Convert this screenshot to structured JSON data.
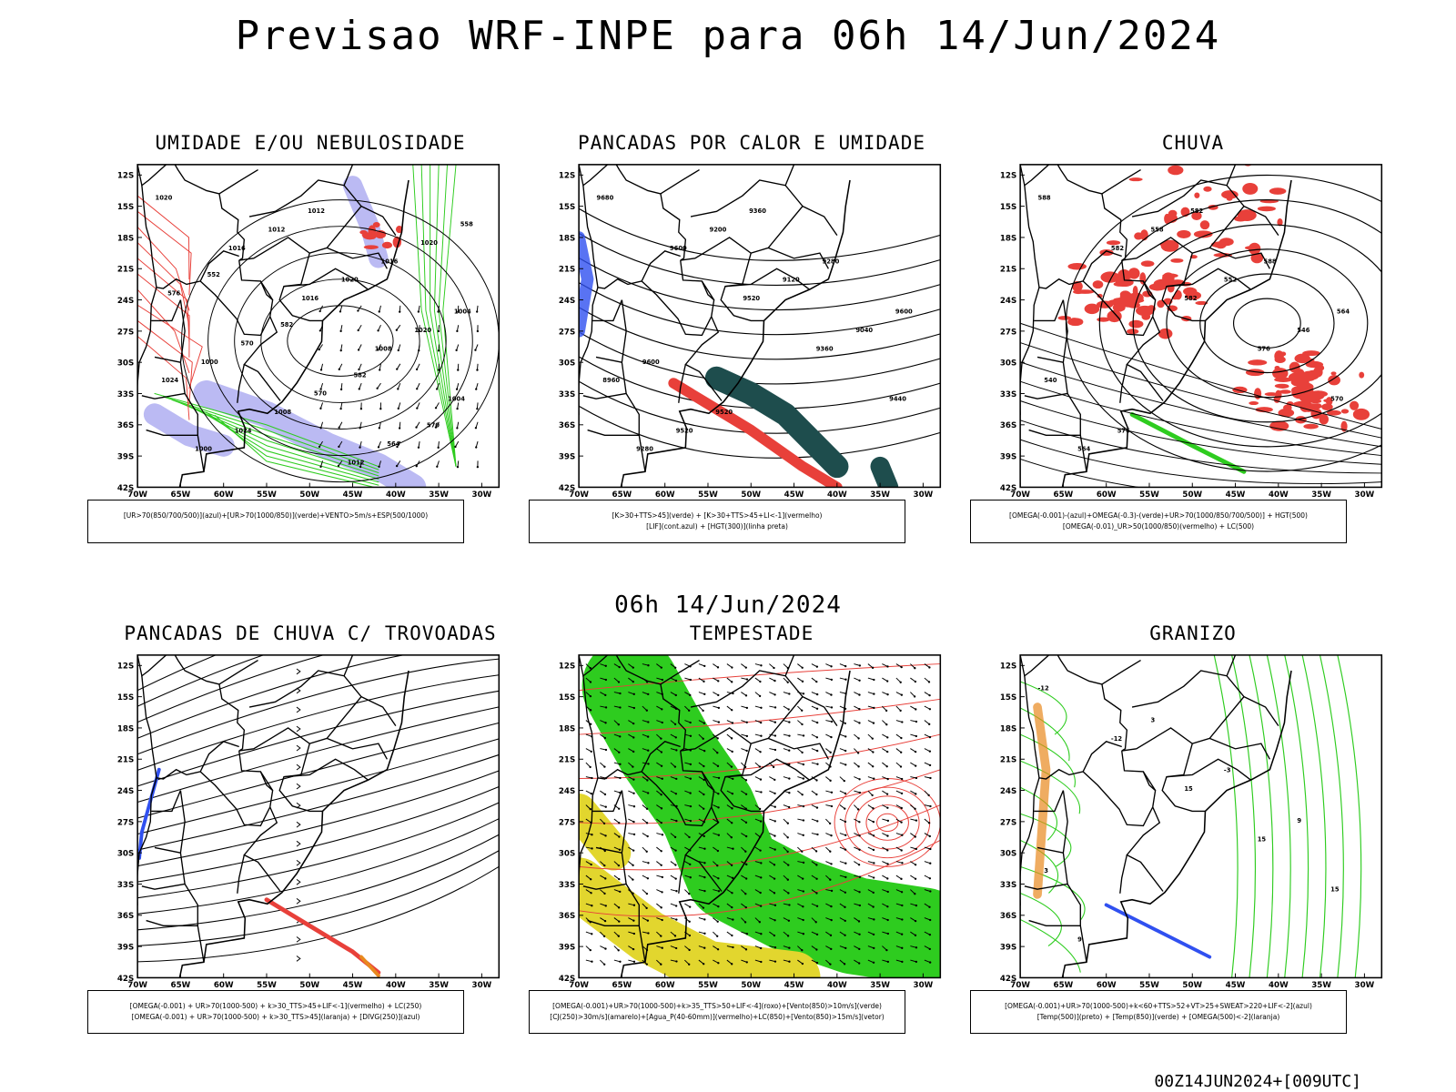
{
  "header": {
    "title": "Previsao WRF-INPE  para 06h 14/Jun/2024",
    "subtitle": "06h 14/Jun/2024",
    "footer": "00Z14JUN2024+[009UTC]"
  },
  "axes": {
    "lat_labels": [
      "12S",
      "15S",
      "18S",
      "21S",
      "24S",
      "27S",
      "30S",
      "33S",
      "36S",
      "39S",
      "42S"
    ],
    "lon_labels": [
      "70W",
      "65W",
      "60W",
      "55W",
      "50W",
      "45W",
      "40W",
      "35W",
      "30W"
    ]
  },
  "colors": {
    "red": "#e8403a",
    "green": "#2ecc1f",
    "blue": "#3050f0",
    "lavender": "#b4b2f2",
    "darkteal": "#1e4d4d",
    "yellow": "#e2d62e",
    "orange": "#e8891e",
    "black": "#000000"
  },
  "panels": [
    {
      "id": "umidade",
      "title": "UMIDADE E/OU NEBULOSIDADE",
      "legend": [
        "[UR>70(850/700/500)](azul)+[UR>70(1000/850)](verde)+VENTO>5m/s+ESP(500/1000)"
      ],
      "labels": [
        "1020",
        "1016",
        "1016",
        "1008",
        "1004",
        "1000",
        "1012",
        "1020",
        "1020",
        "1024",
        "1024",
        "1012",
        "1016",
        "1004",
        "1000",
        "1008",
        "1012",
        "1020",
        "576",
        "570",
        "570",
        "564",
        "558",
        "552",
        "582",
        "582",
        "570"
      ]
    },
    {
      "id": "pancadas_calor",
      "title": "PANCADAS POR CALOR E UMIDADE",
      "legend": [
        "[K>30+TTS>45](verde) + [K>30+TTS>45+LI<-1](vermelho)",
        "[LIF](cont.azul) + [HGT(300)](linha preta)"
      ],
      "labels": [
        "9680",
        "9600",
        "9520",
        "9360",
        "9440",
        "9280",
        "9200",
        "9120",
        "9040",
        "8960",
        "9520",
        "9360",
        "9280",
        "9600",
        "9600",
        "9520"
      ]
    },
    {
      "id": "chuva",
      "title": "CHUVA",
      "legend": [
        "[OMEGA(-0.001)-(azul)+OMEGA(-0.3)-(verde)+UR>70(1000/850/700/500)] + HGT(500)",
        "[OMEGA(-0.01)_UR>50(1000/850)(vermelho) + LC(500)"
      ],
      "labels": [
        "588",
        "582",
        "582",
        "576",
        "570",
        "564",
        "558",
        "552",
        "546",
        "540",
        "576",
        "582",
        "588",
        "564"
      ]
    },
    {
      "id": "pancadas_trovoadas",
      "title": "PANCADAS DE CHUVA C/ TROVOADAS",
      "legend": [
        "[OMEGA(-0.001) + UR>70(1000-500) + k>30_TTS>45+LIF<-1](vermelho) + LC(250)",
        "[OMEGA(-0.001) + UR>70(1000-500) + k>30_TTS>45](laranja) + [DIVG(250)](azul)"
      ],
      "labels": []
    },
    {
      "id": "tempestade",
      "title": "TEMPESTADE",
      "legend": [
        "[OMEGA(-0.001)+UR>70(1000-500)+k>35_TTS>50+LIF<-4](roxo)+[Vento(850)>10m/s](verde)",
        "[CJ(250)>30m/s](amarelo)+[Agua_P(40-60mm)](vermelho)+LC(850)+[Vento(850)>15m/s](vetor)"
      ],
      "labels": []
    },
    {
      "id": "granizo",
      "title": "GRANIZO",
      "legend": [
        "[OMEGA(-0.001)+UR>70(1000-500)+k<60+TTS>52+VT>25+SWEAT>220+LIF<-2](azul)",
        "[Temp(500)](preto) + [Temp(850)](verde) + [OMEGA(500)<-2](laranja)"
      ],
      "labels": [
        "-12",
        "-12",
        "15",
        "15",
        "15",
        "9",
        "3",
        "-3",
        "9",
        "3"
      ]
    }
  ]
}
